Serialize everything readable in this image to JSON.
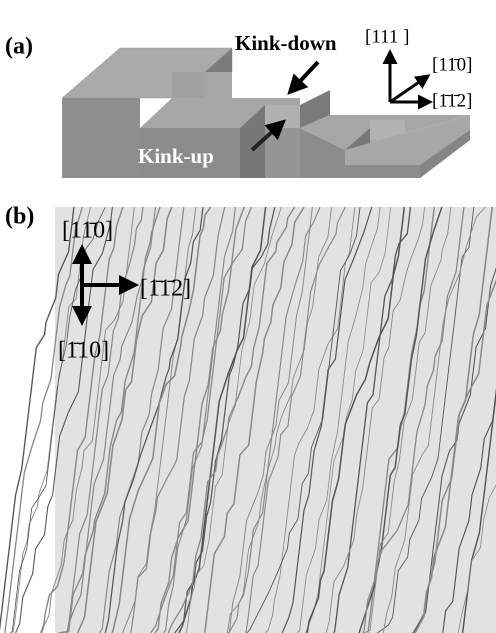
{
  "panel_a": {
    "label": "(a)",
    "kink_down": "Kink-down",
    "kink_up": "Kink-up",
    "axes": [
      "[111 ]",
      "[11̄0]",
      "[1̄1̄2]"
    ]
  },
  "panel_b": {
    "label": "(b)",
    "axes": [
      "[11̄0]",
      "[1̄1̄2]",
      "[1̄10]"
    ]
  }
}
